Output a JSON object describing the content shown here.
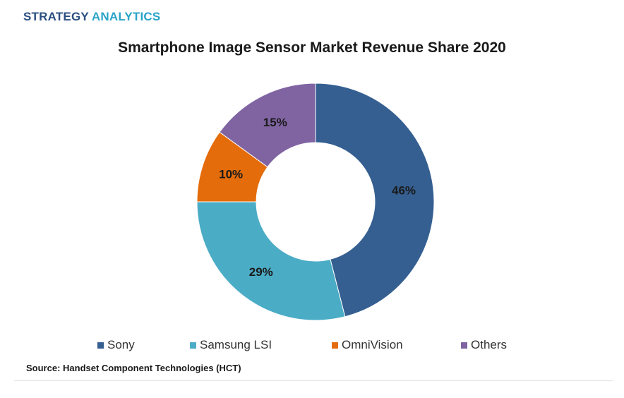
{
  "brand": {
    "part1": "STRATEGY",
    "part2": "ANALYTICS",
    "color1": "#2b4f80",
    "color2": "#2aa3c8"
  },
  "source_note": "Source: Handset Component Technologies (HCT)",
  "chart_data": {
    "type": "pie",
    "variant": "donut",
    "title": "Smartphone Image Sensor Market Revenue Share 2020",
    "series": [
      {
        "name": "Sony",
        "value": 46,
        "label": "46%",
        "color": "#355f91"
      },
      {
        "name": "Samsung LSI",
        "value": 29,
        "label": "29%",
        "color": "#4bacc6"
      },
      {
        "name": "OmniVision",
        "value": 10,
        "label": "10%",
        "color": "#e46c0a"
      },
      {
        "name": "Others",
        "value": 15,
        "label": "15%",
        "color": "#8064a2"
      }
    ],
    "legend_position": "bottom"
  }
}
